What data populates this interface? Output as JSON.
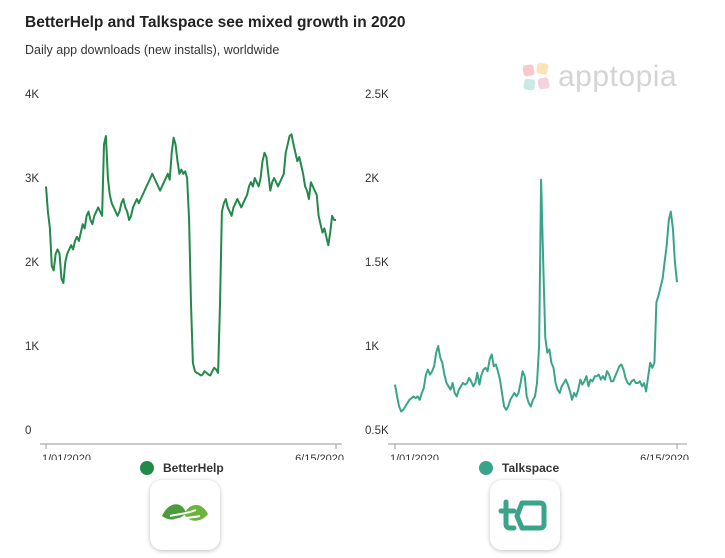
{
  "title": "BetterHelp and Talkspace see mixed growth in 2020",
  "subtitle": "Daily app downloads (new installs), worldwide",
  "brand": {
    "name": "apptopia",
    "icon": "apptopia-logo-icon"
  },
  "colors": {
    "betterhelp": "#23894b",
    "talkspace": "#3aa48a",
    "brand": "#d4d4d4",
    "axis": "#999999"
  },
  "apps": [
    {
      "name": "BetterHelp",
      "icon": "betterhelp-app-icon"
    },
    {
      "name": "Talkspace",
      "icon": "talkspace-app-icon"
    }
  ],
  "chart_data": [
    {
      "type": "line",
      "series": [
        {
          "name": "BetterHelp",
          "values": [
            2900,
            2600,
            2400,
            1950,
            1900,
            2100,
            2150,
            2100,
            1800,
            1750,
            2000,
            2100,
            2150,
            2200,
            2150,
            2250,
            2300,
            2250,
            2350,
            2450,
            2400,
            2550,
            2600,
            2500,
            2450,
            2550,
            2600,
            2650,
            2600,
            2550,
            3400,
            3500,
            3000,
            2800,
            2700,
            2650,
            2600,
            2550,
            2600,
            2700,
            2750,
            2650,
            2600,
            2500,
            2550,
            2650,
            2700,
            2750,
            2700,
            2750,
            2800,
            2850,
            2900,
            2950,
            3000,
            3050,
            3000,
            2950,
            2900,
            2850,
            2900,
            2950,
            3000,
            3050,
            2980,
            3300,
            3480,
            3400,
            3200,
            3050,
            3100,
            3050,
            3080,
            3000,
            2500,
            1500,
            800,
            700,
            680,
            670,
            650,
            660,
            700,
            680,
            660,
            650,
            700,
            740,
            720,
            680,
            1500,
            2600,
            2700,
            2750,
            2650,
            2600,
            2550,
            2650,
            2700,
            2750,
            2700,
            2650,
            2700,
            2750,
            2800,
            2900,
            2950,
            2900,
            3000,
            2950,
            2900,
            3000,
            3200,
            3300,
            3250,
            3050,
            2850,
            2950,
            3000,
            2950,
            2900,
            2950,
            3000,
            3050,
            3300,
            3400,
            3500,
            3520,
            3400,
            3300,
            3200,
            3250,
            3150,
            3050,
            2900,
            2850,
            2750,
            2950,
            2900,
            2850,
            2800,
            2550,
            2450,
            2350,
            2400,
            2300,
            2200,
            2350,
            2550,
            2500,
            2500
          ]
        }
      ],
      "x_tick_labels": [
        "1/01/2020",
        "6/15/2020"
      ],
      "y_tick_labels": [
        "0",
        "1K",
        "2K",
        "3K",
        "4K"
      ],
      "y_tick_values": [
        0,
        1000,
        2000,
        3000,
        4000
      ],
      "ylim": [
        0,
        4000
      ],
      "title": "",
      "xlabel": "",
      "ylabel": ""
    },
    {
      "type": "line",
      "series": [
        {
          "name": "Talkspace",
          "values": [
            770,
            700,
            640,
            610,
            620,
            640,
            660,
            680,
            690,
            700,
            690,
            700,
            680,
            720,
            750,
            830,
            860,
            830,
            850,
            880,
            960,
            1000,
            930,
            900,
            830,
            780,
            760,
            740,
            780,
            720,
            700,
            740,
            760,
            780,
            770,
            780,
            810,
            790,
            760,
            780,
            840,
            770,
            830,
            860,
            870,
            850,
            920,
            950,
            880,
            890,
            850,
            800,
            720,
            640,
            620,
            640,
            680,
            700,
            720,
            700,
            720,
            780,
            850,
            820,
            700,
            660,
            640,
            680,
            700,
            780,
            1000,
            1990,
            1500,
            1050,
            960,
            980,
            900,
            870,
            780,
            740,
            720,
            760,
            780,
            800,
            770,
            730,
            680,
            720,
            700,
            740,
            800,
            770,
            790,
            820,
            760,
            800,
            790,
            820,
            820,
            830,
            800,
            820,
            800,
            850,
            830,
            790,
            790,
            820,
            850,
            880,
            890,
            860,
            810,
            780,
            770,
            790,
            800,
            780,
            780,
            790,
            760,
            780,
            730,
            820,
            900,
            870,
            900,
            1260,
            1300,
            1350,
            1400,
            1500,
            1600,
            1750,
            1800,
            1700,
            1500,
            1380
          ]
        }
      ],
      "x_tick_labels": [
        "1/01/2020",
        "6/15/2020"
      ],
      "y_tick_labels": [
        "0.5K",
        "1K",
        "1.5K",
        "2K",
        "2.5K"
      ],
      "y_tick_values": [
        500,
        1000,
        1500,
        2000,
        2500
      ],
      "ylim": [
        500,
        2500
      ],
      "title": "",
      "xlabel": "",
      "ylabel": ""
    }
  ]
}
